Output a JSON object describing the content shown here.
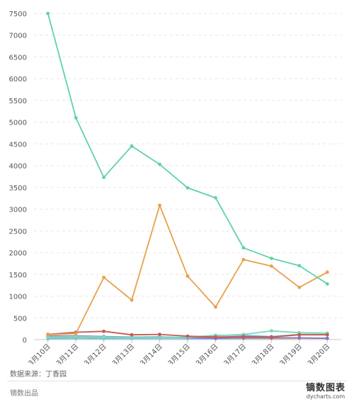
{
  "chart_data": {
    "type": "line",
    "categories": [
      "3月10日",
      "3月11日",
      "3月12日",
      "3月13日",
      "3月14日",
      "3月15日",
      "3月16日",
      "3月17日",
      "3月18日",
      "3月19日",
      "3月20日"
    ],
    "ylim": [
      0,
      7500
    ],
    "yticks": [
      0,
      500,
      1000,
      1500,
      2000,
      2500,
      3000,
      3500,
      4000,
      4500,
      5000,
      5500,
      6000,
      6500,
      7000,
      7500
    ],
    "grid": true,
    "series": [
      {
        "color": "#5fd3a6",
        "values": [
          7500,
          5100,
          3730,
          4450,
          4030,
          3490,
          3260,
          2110,
          1870,
          1700,
          1280
        ]
      },
      {
        "color": "#e8a04c",
        "values": [
          110,
          140,
          1430,
          910,
          3090,
          1460,
          750,
          1840,
          1690,
          1200,
          1550
        ]
      },
      {
        "color": "#c45a4f",
        "values": [
          120,
          170,
          190,
          110,
          120,
          80,
          60,
          70,
          60,
          110,
          110
        ]
      },
      {
        "color": "#7cd9b4",
        "values": [
          60,
          80,
          60,
          60,
          50,
          60,
          90,
          120,
          200,
          160,
          150
        ]
      },
      {
        "color": "#6ec3e0",
        "values": [
          30,
          40,
          30,
          40,
          40,
          50,
          100,
          100,
          70,
          120,
          120
        ]
      },
      {
        "color": "#8a6fc9",
        "values": [
          80,
          90,
          70,
          60,
          60,
          40,
          30,
          40,
          40,
          40,
          30
        ]
      },
      {
        "color": "#e0c25a",
        "values": [
          40,
          50,
          40,
          50,
          60,
          50,
          40,
          30,
          30,
          30,
          30
        ]
      },
      {
        "color": "#9ec9e8",
        "values": [
          20,
          25,
          20,
          20,
          20,
          20,
          20,
          20,
          20,
          30,
          30
        ]
      }
    ]
  },
  "footer": {
    "source": "数据来源：丁香园",
    "credit": "镝数出品",
    "brand_name": "镝数图表",
    "brand_url": "dycharts.com"
  }
}
